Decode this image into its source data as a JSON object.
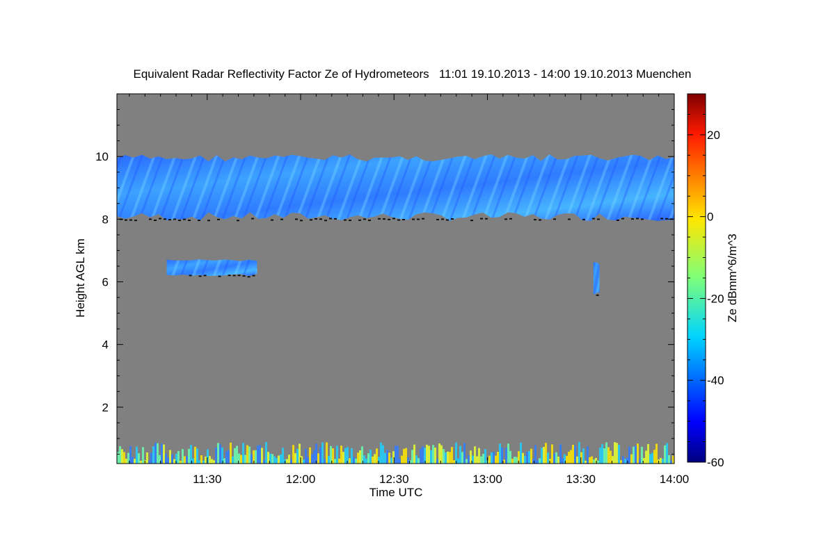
{
  "chart_data": {
    "type": "heatmap",
    "title": "Equivalent Radar Reflectivity Factor Ze of Hydrometeors   11:01 19.10.2013 - 14:00 19.10.2013 Muenchen",
    "xlabel": "Time UTC",
    "ylabel": "Height AGL km",
    "xlim": [
      "11:01",
      "14:00"
    ],
    "ylim": [
      0.2,
      12.0
    ],
    "x_ticks": [
      "11:30",
      "12:00",
      "12:30",
      "13:00",
      "13:30",
      "14:00"
    ],
    "y_ticks": [
      2,
      4,
      6,
      8,
      10
    ],
    "background_color": "#808080",
    "colorbar": {
      "label": "Ze dBmm^6/m^3",
      "range": [
        -60,
        30
      ],
      "ticks": [
        -60,
        -40,
        -20,
        0,
        20
      ],
      "colormap": "jet"
    },
    "features": [
      {
        "kind": "cloud_layer",
        "time_start": "11:01",
        "time_end": "14:00",
        "base_km": 8.0,
        "top_km": 10.0,
        "ze_dbz": -40
      },
      {
        "kind": "cloud_layer",
        "time_start": "11:17",
        "time_end": "11:46",
        "base_km": 6.2,
        "top_km": 6.7,
        "ze_dbz": -42
      },
      {
        "kind": "cloud_layer",
        "time_start": "13:34",
        "time_end": "13:36",
        "base_km": 5.6,
        "top_km": 6.6,
        "ze_dbz": -25
      },
      {
        "kind": "clutter",
        "time_start": "11:01",
        "time_end": "14:00",
        "base_km": 0.2,
        "top_km": 0.8,
        "ze_dbz": -25
      }
    ]
  }
}
